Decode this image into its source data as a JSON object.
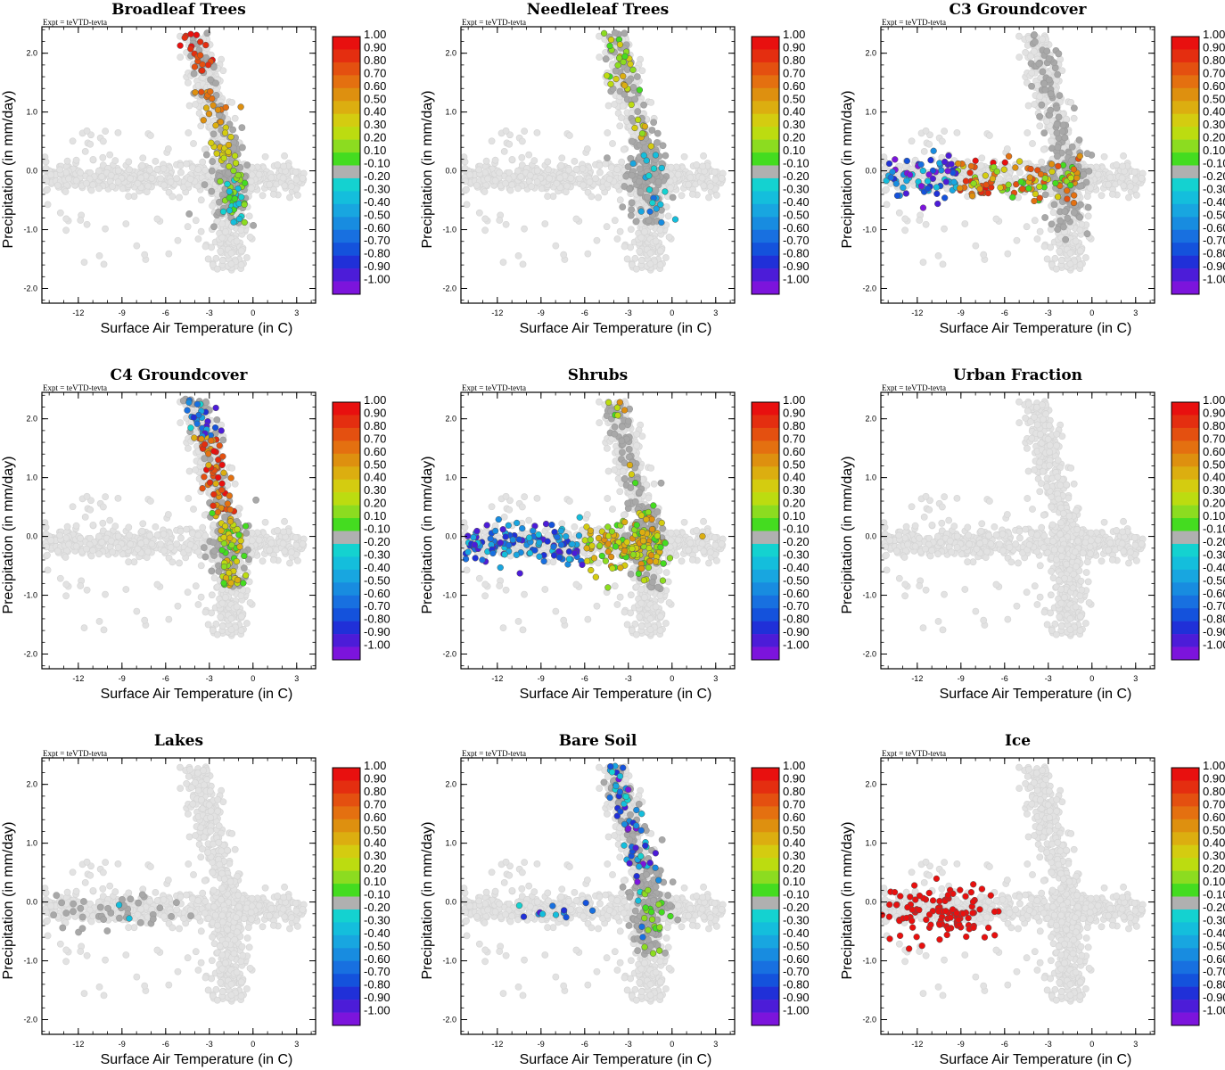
{
  "chart_data": {
    "type": "scatter",
    "expt_label": "Expt = teVTD-tevta",
    "xlabel": "Surface Air Temperature (in C)",
    "ylabel": "Precipitation (in mm/day)",
    "xlim": [
      -14.5,
      4.3
    ],
    "ylim": [
      -2.25,
      2.45
    ],
    "xticks": [
      -12,
      -9,
      -6,
      -3,
      0,
      3
    ],
    "yticks": [
      2.0,
      1.0,
      0.0,
      -1.0,
      -2.0
    ],
    "xtick_labels": [
      "-12",
      "-9",
      "-6",
      "-3",
      "0",
      "3"
    ],
    "ytick_labels": [
      "2.0",
      "1.0",
      "0.0",
      "-1.0",
      "-2.0"
    ],
    "colorbar": {
      "labels": [
        "1.00",
        "0.90",
        "0.80",
        "0.70",
        "0.60",
        "0.50",
        "0.40",
        "0.30",
        "0.20",
        "0.10",
        "-0.10",
        "-0.20",
        "-0.30",
        "-0.40",
        "-0.50",
        "-0.60",
        "-0.70",
        "-0.80",
        "-0.90",
        "-1.00"
      ],
      "colors": [
        "#e8100f",
        "#e42e10",
        "#e45010",
        "#e47010",
        "#de900f",
        "#dcae10",
        "#d4cc10",
        "#bcdc10",
        "#8cdc20",
        "#44dc20",
        "#b0b0b0",
        "#14d2d0",
        "#14bedc",
        "#18a6e0",
        "#188ce0",
        "#1870e0",
        "#1452dc",
        "#2030d8",
        "#4c1cd8",
        "#7c14dc"
      ]
    },
    "point_colors": {
      "background": "#e2e2e2",
      "inactive": "#a8a8a8"
    },
    "panels": [
      {
        "title": "Broadleaf Trees",
        "cluster": "steep-warm",
        "mode": "mixed-positive",
        "counts": {
          "inactive": 140,
          "colored": 95
        }
      },
      {
        "title": "Needleleaf Trees",
        "cluster": "steep-warm",
        "mode": "mixed-negative",
        "counts": {
          "inactive": 170,
          "colored": 55
        }
      },
      {
        "title": "C3 Groundcover",
        "cluster": "horizontal-cold",
        "mode": "gradient",
        "counts": {
          "inactive": 160,
          "colored": 190
        }
      },
      {
        "title": "C4 Groundcover",
        "cluster": "steep-warm",
        "mode": "mixed-high",
        "counts": {
          "inactive": 130,
          "colored": 150
        }
      },
      {
        "title": "Shrubs",
        "cluster": "horizontal-cold",
        "mode": "mixed-low",
        "counts": {
          "inactive": 140,
          "colored": 210
        }
      },
      {
        "title": "Urban Fraction",
        "cluster": "none",
        "mode": "none",
        "counts": {
          "inactive": 0,
          "colored": 0
        }
      },
      {
        "title": "Lakes",
        "cluster": "lakes",
        "mode": "lakes",
        "counts": {
          "inactive": 40,
          "colored": 2
        }
      },
      {
        "title": "Bare Soil",
        "cluster": "steep-warm",
        "mode": "baresoil",
        "counts": {
          "inactive": 200,
          "colored": 85
        }
      },
      {
        "title": "Ice",
        "cluster": "horizontal-cold",
        "mode": "ice",
        "counts": {
          "inactive": 0,
          "colored": 110
        }
      }
    ]
  }
}
